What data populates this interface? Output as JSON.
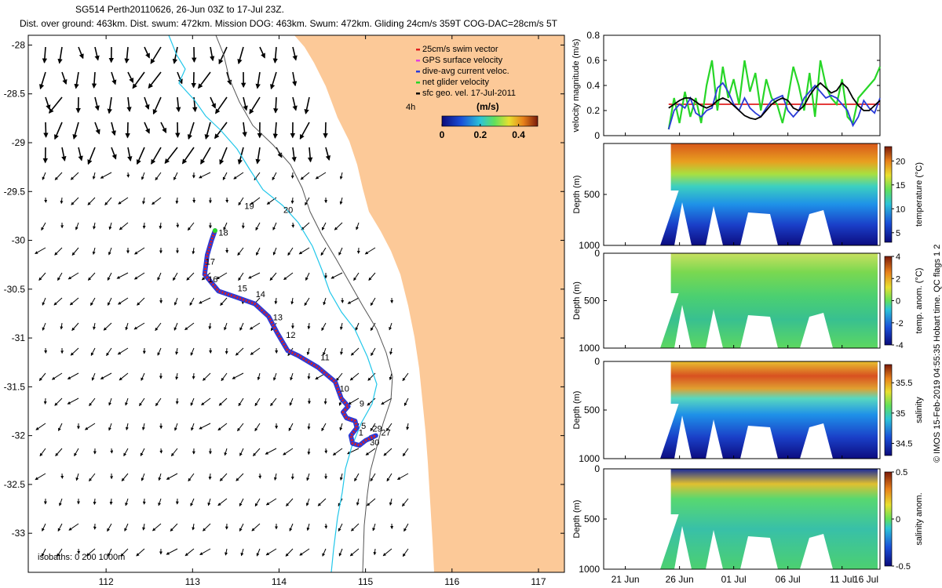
{
  "header": {
    "line1": "SG514 Perth20110626, 26-Jun 03Z to 17-Jul 23Z.",
    "line2": "Dist. over ground: 463km. Dist. swum: 472km. Mission DOG: 463km. Swum: 472km. Gliding 24cm/s 359T COG-DAC=28cm/s 5T"
  },
  "side_label": "© IMOS 15-Feb-2019 04:55:35 Hobart time. QC flags 1  2",
  "colors": {
    "land": "#fcc998",
    "track_red": "#e11f1f",
    "track_blue": "#2a3bd8",
    "track_green": "#27d627",
    "isobath_cyan": "#22c7ea",
    "isobath_dark": "#555555"
  },
  "chart_data": [
    {
      "type": "map",
      "xlim": [
        111.1,
        117.3
      ],
      "ylim": [
        -33.4,
        -27.9
      ],
      "x_ticks": [
        112,
        113,
        114,
        115,
        116,
        117
      ],
      "y_ticks": [
        -28,
        -28.5,
        -29,
        -29.5,
        -30,
        -30.5,
        -31,
        -31.5,
        -32,
        -32.5,
        -33
      ],
      "legend": [
        {
          "label": "25cm/s swim vector",
          "color": "#e11f1f"
        },
        {
          "label": "GPS surface velocity",
          "color": "#e040e0"
        },
        {
          "label": "dive-avg current veloc.",
          "color": "#2a3bd8"
        },
        {
          "label": "net glider velocity",
          "color": "#27d627"
        },
        {
          "label": "sfc geo. vel. 17-Jul-2011",
          "color": "#000000"
        }
      ],
      "legend_placement": "top-right",
      "time_label": "4h",
      "colorbar": {
        "title": "(m/s)",
        "ticks": [
          0,
          0.2,
          0.4
        ],
        "range": [
          0,
          0.5
        ]
      },
      "isobath_note": "isobaths: 0   200  1000m",
      "track": [
        [
          115.06,
          -32.02
        ],
        [
          115.12,
          -32.0
        ],
        [
          115.0,
          -32.05
        ],
        [
          114.93,
          -32.1
        ],
        [
          114.85,
          -32.08
        ],
        [
          114.83,
          -32.0
        ],
        [
          114.9,
          -31.92
        ],
        [
          114.88,
          -31.85
        ],
        [
          114.78,
          -31.82
        ],
        [
          114.74,
          -31.76
        ],
        [
          114.8,
          -31.7
        ],
        [
          114.72,
          -31.62
        ],
        [
          114.65,
          -31.45
        ],
        [
          114.45,
          -31.3
        ],
        [
          114.22,
          -31.18
        ],
        [
          114.1,
          -31.13
        ],
        [
          113.98,
          -30.95
        ],
        [
          113.88,
          -30.78
        ],
        [
          113.72,
          -30.65
        ],
        [
          113.5,
          -30.58
        ],
        [
          113.3,
          -30.52
        ],
        [
          113.14,
          -30.35
        ],
        [
          113.17,
          -30.15
        ],
        [
          113.22,
          -30.0
        ],
        [
          113.26,
          -29.9
        ]
      ],
      "day_labels": [
        {
          "text": "19",
          "lon": 113.6,
          "lat": -29.68
        },
        {
          "text": "20",
          "lon": 114.05,
          "lat": -29.72
        },
        {
          "text": "18",
          "lon": 113.3,
          "lat": -29.95
        },
        {
          "text": "17",
          "lon": 113.15,
          "lat": -30.25
        },
        {
          "text": "16",
          "lon": 113.18,
          "lat": -30.43
        },
        {
          "text": "15",
          "lon": 113.52,
          "lat": -30.52
        },
        {
          "text": "14",
          "lon": 113.73,
          "lat": -30.58
        },
        {
          "text": "13",
          "lon": 113.93,
          "lat": -30.82
        },
        {
          "text": "12",
          "lon": 114.08,
          "lat": -31.0
        },
        {
          "text": "11",
          "lon": 114.48,
          "lat": -31.23
        },
        {
          "text": "10",
          "lon": 114.7,
          "lat": -31.55
        },
        {
          "text": "9",
          "lon": 114.93,
          "lat": -31.7
        },
        {
          "text": "5",
          "lon": 114.95,
          "lat": -31.93
        },
        {
          "text": "1",
          "lon": 114.92,
          "lat": -32.0
        },
        {
          "text": "29",
          "lon": 115.08,
          "lat": -31.96
        },
        {
          "text": "27",
          "lon": 115.18,
          "lat": -32.0
        },
        {
          "text": "30",
          "lon": 115.05,
          "lat": -32.1
        }
      ]
    },
    {
      "type": "line",
      "ylabel": "velocity magnitude (m/s)",
      "ylim": [
        0,
        0.8
      ],
      "yticks": [
        0,
        0.2,
        0.4,
        0.6,
        0.8
      ],
      "xlim": [
        0,
        25.5
      ],
      "series": [
        {
          "color": "#e11f1f",
          "x": [
            6.0,
            25.5
          ],
          "y": [
            0.25,
            0.25
          ]
        },
        {
          "color": "#27d627",
          "x": [
            6,
            6.5,
            7,
            7.5,
            8,
            8.5,
            9,
            9.5,
            10,
            10.5,
            11,
            11.5,
            12,
            12.5,
            13,
            13.5,
            14,
            14.5,
            15,
            15.5,
            16,
            16.5,
            17,
            17.5,
            18,
            18.5,
            19,
            19.5,
            20,
            20.5,
            21,
            21.5,
            22,
            22.5,
            23,
            23.5,
            24,
            24.5,
            25,
            25.5
          ],
          "y": [
            0.05,
            0.3,
            0.1,
            0.35,
            0.15,
            0.3,
            0.1,
            0.4,
            0.6,
            0.2,
            0.55,
            0.3,
            0.45,
            0.25,
            0.6,
            0.35,
            0.5,
            0.2,
            0.45,
            0.3,
            0.25,
            0.1,
            0.3,
            0.55,
            0.4,
            0.2,
            0.5,
            0.15,
            0.6,
            0.4,
            0.3,
            0.25,
            0.45,
            0.15,
            0.1,
            0.3,
            0.35,
            0.4,
            0.45,
            0.55
          ]
        },
        {
          "color": "#2a3bd8",
          "x": [
            6,
            6.5,
            7,
            7.5,
            8,
            8.5,
            9,
            9.5,
            10,
            10.5,
            11,
            11.5,
            12,
            12.5,
            13,
            13.5,
            14,
            14.5,
            15,
            15.5,
            16,
            16.5,
            17,
            17.5,
            18,
            18.5,
            19,
            19.5,
            20,
            20.5,
            21,
            21.5,
            22,
            22.5,
            23,
            23.5,
            24,
            24.5,
            25,
            25.5
          ],
          "y": [
            0.05,
            0.2,
            0.25,
            0.22,
            0.3,
            0.18,
            0.15,
            0.2,
            0.22,
            0.38,
            0.42,
            0.35,
            0.25,
            0.2,
            0.3,
            0.22,
            0.18,
            0.15,
            0.22,
            0.28,
            0.3,
            0.32,
            0.2,
            0.15,
            0.2,
            0.3,
            0.35,
            0.4,
            0.35,
            0.3,
            0.32,
            0.3,
            0.25,
            0.2,
            0.08,
            0.15,
            0.28,
            0.22,
            0.18,
            0.3
          ]
        },
        {
          "color": "#000000",
          "x": [
            6,
            6.5,
            7,
            7.5,
            8,
            8.5,
            9,
            9.5,
            10,
            10.5,
            11,
            11.5,
            12,
            12.5,
            13,
            13.5,
            14,
            14.5,
            15,
            15.5,
            16,
            16.5,
            17,
            17.5,
            18,
            18.5,
            19,
            19.5,
            20,
            20.5,
            21,
            21.5,
            22,
            22.5,
            23,
            23.5,
            24,
            24.5,
            25,
            25.5
          ],
          "y": [
            0.22,
            0.25,
            0.28,
            0.3,
            0.3,
            0.27,
            0.24,
            0.22,
            0.24,
            0.28,
            0.3,
            0.28,
            0.24,
            0.2,
            0.16,
            0.14,
            0.13,
            0.15,
            0.2,
            0.25,
            0.28,
            0.3,
            0.28,
            0.22,
            0.2,
            0.24,
            0.32,
            0.38,
            0.42,
            0.38,
            0.34,
            0.36,
            0.42,
            0.38,
            0.3,
            0.24,
            0.2,
            0.2,
            0.24,
            0.28
          ]
        }
      ]
    },
    {
      "type": "heatmap",
      "ylabel": "Depth (m)",
      "ylim": [
        0,
        1000
      ],
      "yticks": [
        500,
        1000
      ],
      "colorbar_label": "temperature (°C)",
      "colorbar_ticks": [
        5,
        10,
        15,
        20
      ],
      "colorbar_range": [
        3,
        23
      ]
    },
    {
      "type": "heatmap",
      "ylabel": "Depth (m)",
      "ylim": [
        0,
        1000
      ],
      "yticks": [
        0,
        500,
        1000
      ],
      "colorbar_label": "temp. anom. (°C)",
      "colorbar_ticks": [
        -4,
        -2,
        0,
        2,
        4
      ],
      "colorbar_range": [
        -4,
        4
      ]
    },
    {
      "type": "heatmap",
      "ylabel": "Depth (m)",
      "ylim": [
        0,
        1000
      ],
      "yticks": [
        0,
        500,
        1000
      ],
      "colorbar_label": "salinity",
      "colorbar_ticks": [
        34.5,
        35,
        35.5
      ],
      "colorbar_range": [
        34.3,
        35.8
      ]
    },
    {
      "type": "heatmap",
      "ylabel": "Depth (m)",
      "ylim": [
        0,
        1000
      ],
      "yticks": [
        0,
        500,
        1000
      ],
      "colorbar_label": "salinity anom.",
      "colorbar_ticks": [
        -0.5,
        0,
        0.5
      ],
      "colorbar_range": [
        -0.5,
        0.5
      ]
    }
  ],
  "time_axis": {
    "xlim": [
      0,
      25.5
    ],
    "ticks": [
      {
        "x": 2,
        "label": "21 Jun"
      },
      {
        "x": 7,
        "label": "26 Jun"
      },
      {
        "x": 12,
        "label": "01 Jul"
      },
      {
        "x": 17,
        "label": "06 Jul"
      },
      {
        "x": 22,
        "label": "11 Jul"
      },
      {
        "x": 27,
        "label": "16 Jul"
      }
    ]
  }
}
